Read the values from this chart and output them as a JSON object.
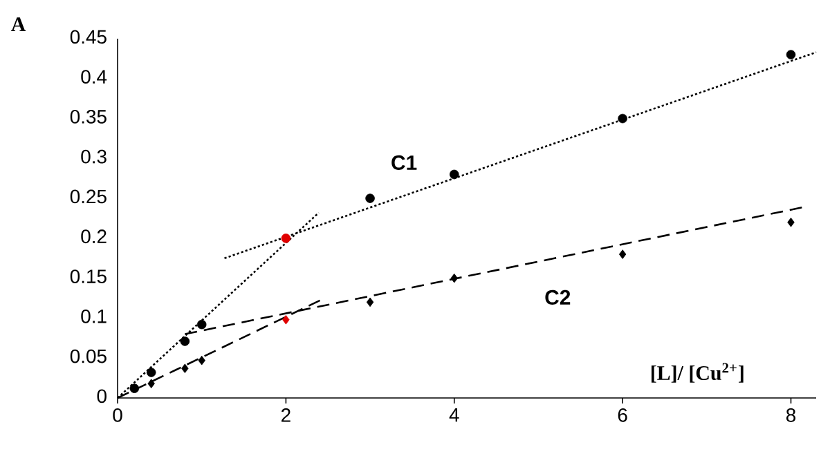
{
  "chart_data": {
    "type": "scatter",
    "xlabel": "[L]/ [Cu$^{2+}$]",
    "ylabel": "A",
    "xlim": [
      0,
      8.3
    ],
    "ylim": [
      0,
      0.45
    ],
    "xticks": [
      0,
      2,
      4,
      6,
      8
    ],
    "yticks": [
      0,
      0.05,
      0.1,
      0.15,
      0.2,
      0.25,
      0.3,
      0.35,
      0.4,
      0.45
    ],
    "series": [
      {
        "name": "C1",
        "marker": "circle",
        "x": [
          0.2,
          0.4,
          0.8,
          1,
          2,
          3,
          4,
          6,
          8
        ],
        "values": [
          0.012,
          0.032,
          0.071,
          0.092,
          0.2,
          0.25,
          0.28,
          0.35,
          0.43
        ],
        "colors": [
          "#000000",
          "#000000",
          "#000000",
          "#000000",
          "#e00000",
          "#000000",
          "#000000",
          "#000000",
          "#000000"
        ]
      },
      {
        "name": "C2",
        "marker": "diamond",
        "x": [
          0.4,
          0.8,
          1,
          2,
          3,
          4,
          6,
          8
        ],
        "values": [
          0.018,
          0.037,
          0.047,
          0.098,
          0.12,
          0.15,
          0.18,
          0.22
        ],
        "colors": [
          "#000000",
          "#000000",
          "#000000",
          "#e00000",
          "#000000",
          "#000000",
          "#000000",
          "#000000"
        ]
      },
      {
        "type": "line",
        "line_style": "dotted",
        "color": "#000000",
        "x": [
          0,
          2.39
        ],
        "values": [
          0,
          0.232
        ]
      },
      {
        "type": "line",
        "line_style": "dotted",
        "color": "#000000",
        "x": [
          1.27,
          8.3
        ],
        "values": [
          0.175,
          0.433
        ]
      },
      {
        "type": "line",
        "line_style": "dashed",
        "color": "#000000",
        "x": [
          0,
          2.42
        ],
        "values": [
          0,
          0.123
        ]
      },
      {
        "type": "line",
        "line_style": "dashed",
        "color": "#000000",
        "x": [
          0.8,
          8.15
        ],
        "values": [
          0.08,
          0.239
        ]
      }
    ]
  }
}
